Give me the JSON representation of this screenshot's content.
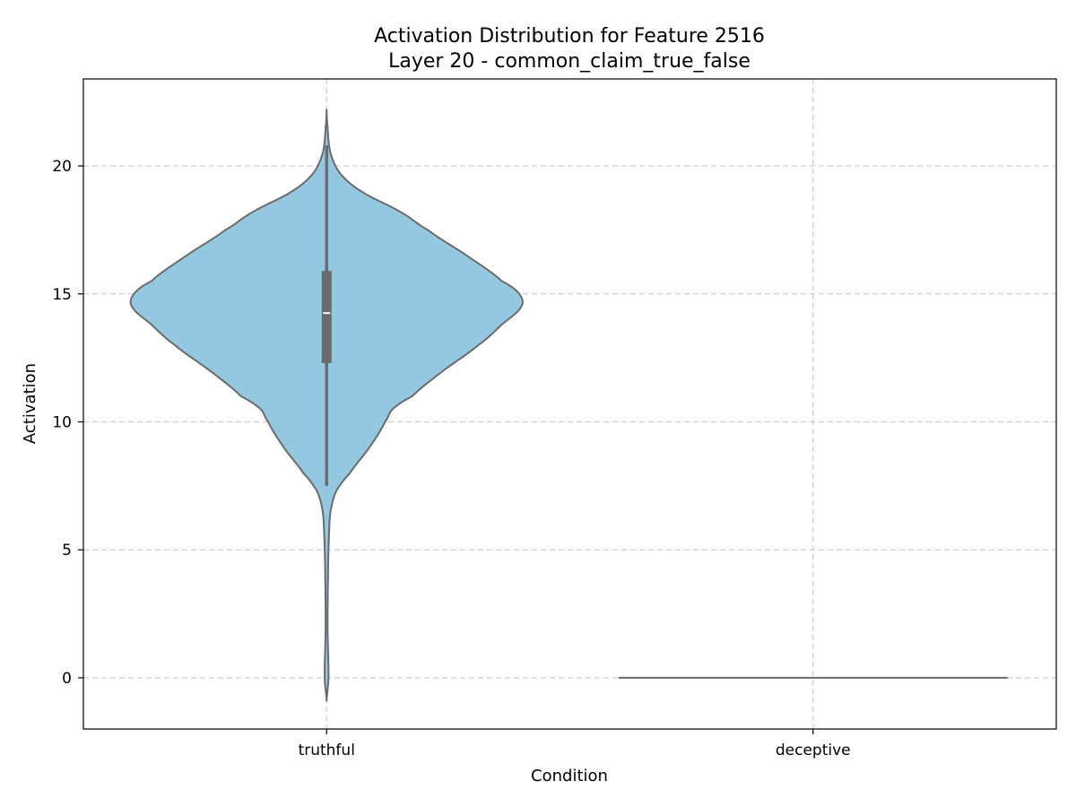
{
  "chart_data": {
    "type": "violin",
    "title": "Activation Distribution for Feature 2516",
    "subtitle": "Layer 20 - common_claim_true_false",
    "xlabel": "Condition",
    "ylabel": "Activation",
    "categories": [
      "truthful",
      "deceptive"
    ],
    "ylim": [
      -2.0,
      23.4
    ],
    "yticks": [
      0,
      5,
      10,
      15,
      20
    ],
    "grid": true,
    "colors": {
      "violin_fill": "#93c8e0",
      "violin_edge": "#6b6b6b",
      "box": "#6b6b6b",
      "median": "#ffffff",
      "grid": "#cccccc"
    },
    "violins": [
      {
        "category": "truthful",
        "min": -0.9,
        "max": 22.2,
        "q1": 12.3,
        "median": 14.25,
        "q3": 15.9,
        "whisker_low": 7.5,
        "whisker_high": 20.8,
        "density_profile": [
          [
            -0.9,
            0.0
          ],
          [
            0.0,
            0.01
          ],
          [
            2.0,
            0.005
          ],
          [
            4.5,
            0.008
          ],
          [
            5.5,
            0.012
          ],
          [
            6.5,
            0.02
          ],
          [
            7.3,
            0.05
          ],
          [
            8.0,
            0.12
          ],
          [
            9.0,
            0.22
          ],
          [
            10.0,
            0.3
          ],
          [
            10.5,
            0.34
          ],
          [
            11.0,
            0.44
          ],
          [
            12.0,
            0.6
          ],
          [
            13.0,
            0.78
          ],
          [
            13.8,
            0.9
          ],
          [
            14.5,
            1.0
          ],
          [
            15.0,
            0.99
          ],
          [
            15.5,
            0.9
          ],
          [
            16.5,
            0.72
          ],
          [
            17.5,
            0.52
          ],
          [
            18.2,
            0.38
          ],
          [
            19.0,
            0.18
          ],
          [
            19.7,
            0.07
          ],
          [
            20.5,
            0.02
          ],
          [
            21.5,
            0.005
          ],
          [
            22.2,
            0.0
          ]
        ]
      },
      {
        "category": "deceptive",
        "constant_value": 0
      }
    ]
  }
}
